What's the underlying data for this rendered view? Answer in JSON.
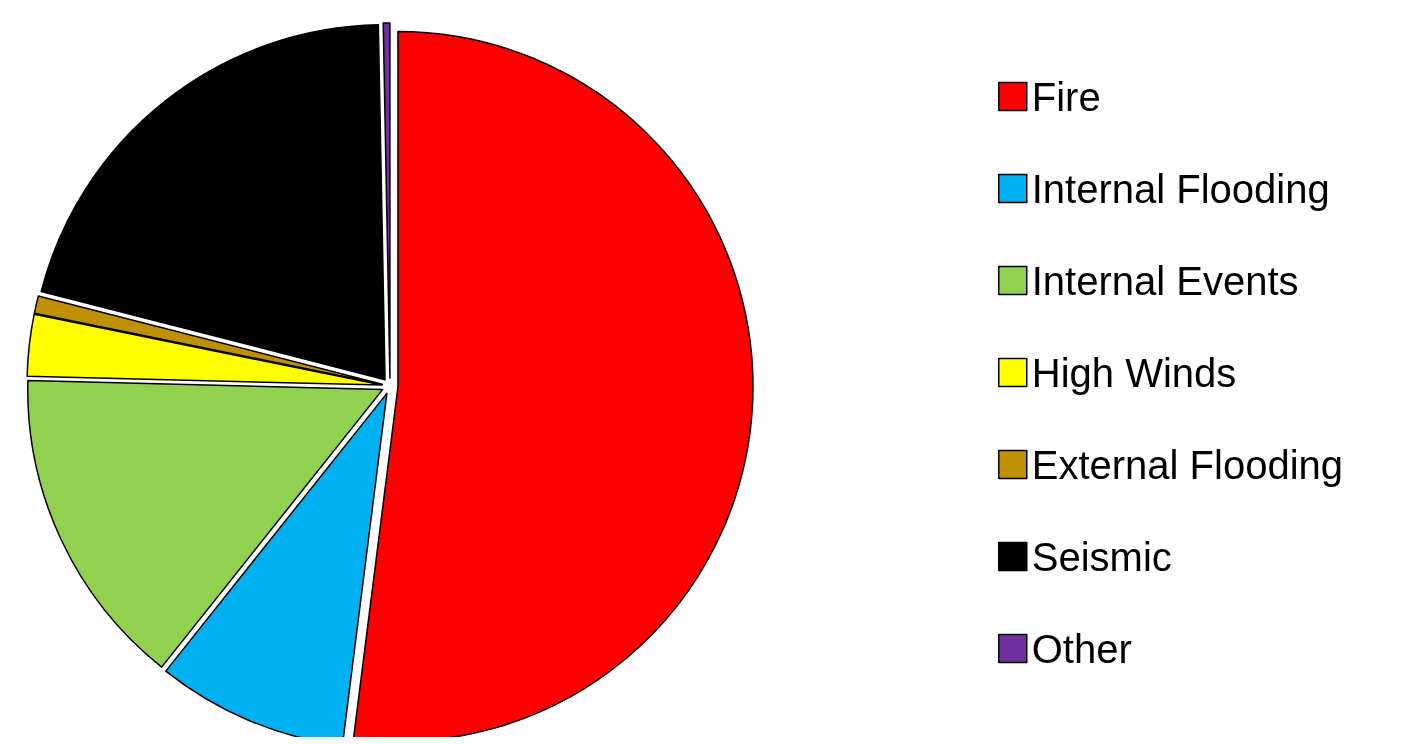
{
  "chart_data": {
    "type": "pie",
    "categories": [
      "Fire",
      "Internal Flooding",
      "Internal Events",
      "High Winds",
      "External Flooding",
      "Seismic",
      "Other"
    ],
    "values": [
      52,
      8.7,
      14.7,
      2.8,
      0.8,
      20.7,
      0.3
    ],
    "colors": [
      "#ff0000",
      "#00b0f0",
      "#92d050",
      "#ffff00",
      "#bf9000",
      "#000000",
      "#7030a0"
    ],
    "legend": "right"
  }
}
